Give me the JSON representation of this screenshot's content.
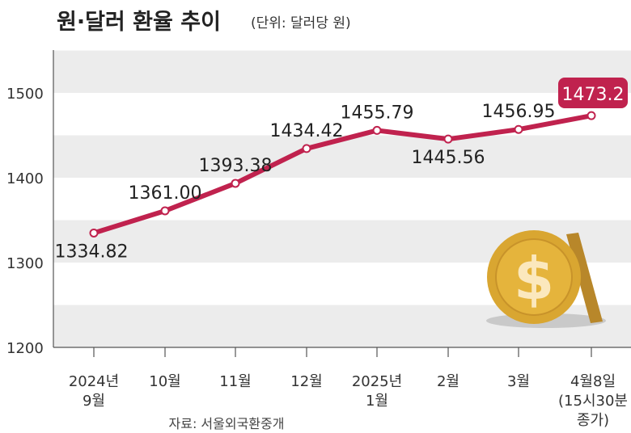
{
  "chart_data": {
    "type": "line",
    "title": "원·달러 환율 추이",
    "unit": "(단위: 달러당 원)",
    "source": "자료: 서울외국환중개",
    "categories": [
      [
        "2024년",
        "9월"
      ],
      [
        "10월"
      ],
      [
        "11월"
      ],
      [
        "12월"
      ],
      [
        "2025년",
        "1월"
      ],
      [
        "2월"
      ],
      [
        "3월"
      ],
      [
        "4월8일",
        "(15시30분",
        "종가)"
      ]
    ],
    "values": [
      1334.82,
      1361.0,
      1393.38,
      1434.42,
      1455.79,
      1445.56,
      1456.95,
      1473.2
    ],
    "labels": [
      "1334.82",
      "1361.00",
      "1393.38",
      "1434.42",
      "1455.79",
      "1445.56",
      "1456.95",
      "1473.2"
    ],
    "yticks": [
      1200,
      1300,
      1400,
      1500
    ],
    "ylim": [
      1200,
      1550
    ],
    "grid": "alternating horizontal bands",
    "colors": {
      "line": "#c0224e",
      "band": "#ececec",
      "highlight": "#c0224e"
    }
  }
}
